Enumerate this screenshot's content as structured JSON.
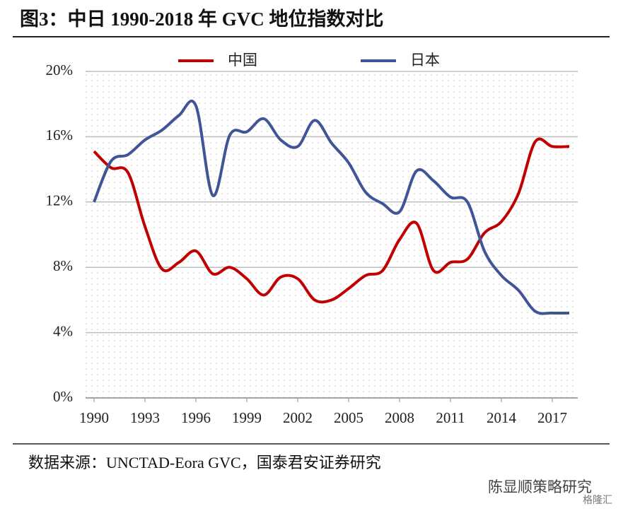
{
  "chart_data": {
    "type": "line",
    "title": "图3：中日 1990-2018 年 GVC 地位指数对比",
    "x": [
      1990,
      1991,
      1992,
      1993,
      1994,
      1995,
      1996,
      1997,
      1998,
      1999,
      2000,
      2001,
      2002,
      2003,
      2004,
      2005,
      2006,
      2007,
      2008,
      2009,
      2010,
      2011,
      2012,
      2013,
      2014,
      2015,
      2016,
      2017,
      2018
    ],
    "series": [
      {
        "name": "中国",
        "color": "#c00000",
        "values": [
          15.1,
          14.1,
          13.8,
          10.5,
          7.9,
          8.3,
          9.0,
          7.6,
          8.0,
          7.3,
          6.3,
          7.4,
          7.3,
          6.0,
          6.0,
          6.7,
          7.5,
          7.8,
          9.7,
          10.7,
          7.8,
          8.3,
          8.5,
          10.1,
          10.8,
          12.5,
          15.7,
          15.4,
          15.4
        ]
      },
      {
        "name": "日本",
        "color": "#3f5597",
        "values": [
          12.0,
          14.5,
          14.9,
          15.8,
          16.4,
          17.3,
          17.9,
          12.4,
          16.1,
          16.3,
          17.1,
          15.8,
          15.4,
          17.0,
          15.6,
          14.4,
          12.6,
          11.9,
          11.4,
          13.9,
          13.3,
          12.3,
          12.0,
          9.0,
          7.5,
          6.6,
          5.3,
          5.2,
          5.2
        ]
      }
    ],
    "xlim": [
      1989.5,
      2018.5
    ],
    "xticks": [
      1990,
      1993,
      1996,
      1999,
      2002,
      2005,
      2008,
      2011,
      2014,
      2017
    ],
    "ylim": [
      0,
      20
    ],
    "yticks": [
      {
        "value": 0,
        "label": "0%"
      },
      {
        "value": 4,
        "label": "4%"
      },
      {
        "value": 8,
        "label": "8%"
      },
      {
        "value": 12,
        "label": "12%"
      },
      {
        "value": 16,
        "label": "16%"
      },
      {
        "value": 20,
        "label": "20%"
      }
    ],
    "grid": true,
    "legend": "top",
    "source": "数据来源：UNCTAD-Eora GVC，国泰君安证券研究",
    "watermark": "陈显顺策略研究",
    "watermark_logo": "格隆汇"
  }
}
